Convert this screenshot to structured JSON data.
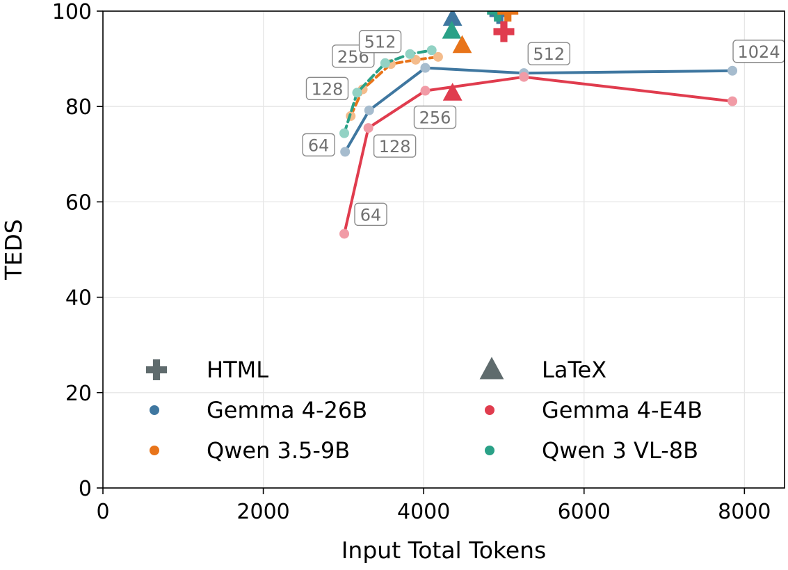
{
  "chart_data": {
    "type": "scatter",
    "xlabel": "Input Total Tokens",
    "ylabel": "TEDS",
    "xlim": [
      0,
      8500
    ],
    "ylim": [
      0,
      100
    ],
    "xticks": [
      0,
      2000,
      4000,
      6000,
      8000
    ],
    "yticks": [
      0,
      20,
      40,
      60,
      80,
      100
    ],
    "grid": true,
    "legend_position": "lower-center",
    "legend": [
      {
        "label": "HTML",
        "marker": "plus",
        "color": "#5f6b6d"
      },
      {
        "label": "LaTeX",
        "marker": "triangle",
        "color": "#5f6b6d"
      },
      {
        "label": "Gemma 4-26B",
        "marker": "dot",
        "color": "#3f77a0"
      },
      {
        "label": "Gemma 4-E4B",
        "marker": "dot",
        "color": "#e03c4e"
      },
      {
        "label": "Qwen 3.5-9B",
        "marker": "dot",
        "color": "#e8741a"
      },
      {
        "label": "Qwen 3 VL-8B",
        "marker": "dot",
        "color": "#2aa187"
      }
    ],
    "series": [
      {
        "name": "Gemma 4-26B",
        "color": "#3f77a0",
        "point_color": "#a6bcce",
        "dashed": false,
        "points": [
          {
            "x": 3020,
            "y": 70.5,
            "label": "64"
          },
          {
            "x": 3320,
            "y": 79.2,
            "label": ""
          },
          {
            "x": 4020,
            "y": 88.1,
            "label": ""
          },
          {
            "x": 5250,
            "y": 87.0,
            "label": "512"
          },
          {
            "x": 7850,
            "y": 87.5,
            "label": "1024"
          }
        ]
      },
      {
        "name": "Gemma 4-E4B",
        "color": "#e03c4e",
        "point_color": "#f19ba6",
        "dashed": false,
        "points": [
          {
            "x": 3010,
            "y": 53.3,
            "label": "64"
          },
          {
            "x": 3310,
            "y": 75.5,
            "label": "128"
          },
          {
            "x": 4020,
            "y": 83.3,
            "label": "256"
          },
          {
            "x": 5250,
            "y": 86.2,
            "label": ""
          },
          {
            "x": 7850,
            "y": 81.1,
            "label": ""
          }
        ]
      },
      {
        "name": "Qwen 3.5-9B",
        "color": "#e8741a",
        "point_color": "#f4bc8c",
        "dashed": true,
        "points": [
          {
            "x": 3090,
            "y": 78.0,
            "label": ""
          },
          {
            "x": 3240,
            "y": 83.6,
            "label": ""
          },
          {
            "x": 3590,
            "y": 88.9,
            "label": ""
          },
          {
            "x": 3900,
            "y": 89.8,
            "label": ""
          },
          {
            "x": 4180,
            "y": 90.4,
            "label": ""
          }
        ]
      },
      {
        "name": "Qwen 3 VL-8B",
        "color": "#2aa187",
        "point_color": "#92d2c4",
        "dashed": true,
        "points": [
          {
            "x": 3010,
            "y": 74.4,
            "label": ""
          },
          {
            "x": 3170,
            "y": 82.9,
            "label": "128"
          },
          {
            "x": 3520,
            "y": 89.1,
            "label": "256"
          },
          {
            "x": 3830,
            "y": 91.0,
            "label": "512"
          },
          {
            "x": 4100,
            "y": 91.8,
            "label": ""
          }
        ]
      }
    ],
    "reference_points": [
      {
        "model": "Gemma 4-26B",
        "format": "LaTeX",
        "marker": "triangle",
        "x": 4360,
        "y": 98.5,
        "color": "#3f77a0"
      },
      {
        "model": "Qwen 3 VL-8B",
        "format": "LaTeX",
        "marker": "triangle",
        "x": 4350,
        "y": 95.8,
        "color": "#2aa187"
      },
      {
        "model": "Qwen 3.5-9B",
        "format": "LaTeX",
        "marker": "triangle",
        "x": 4480,
        "y": 92.8,
        "color": "#e8741a"
      },
      {
        "model": "Gemma 4-E4B",
        "format": "LaTeX",
        "marker": "triangle",
        "x": 4360,
        "y": 82.8,
        "color": "#e03c4e"
      },
      {
        "model": "Gemma 4-26B",
        "format": "HTML",
        "marker": "plus",
        "x": 4950,
        "y": 99.5,
        "color": "#3f77a0"
      },
      {
        "model": "Qwen 3 VL-8B",
        "format": "HTML",
        "marker": "plus",
        "x": 4920,
        "y": 100.0,
        "color": "#2aa187"
      },
      {
        "model": "Qwen 3.5-9B",
        "format": "HTML",
        "marker": "plus",
        "x": 5050,
        "y": 100.0,
        "color": "#e8741a"
      },
      {
        "model": "Gemma 4-E4B",
        "format": "HTML",
        "marker": "plus",
        "x": 5000,
        "y": 95.7,
        "color": "#e03c4e"
      }
    ]
  }
}
